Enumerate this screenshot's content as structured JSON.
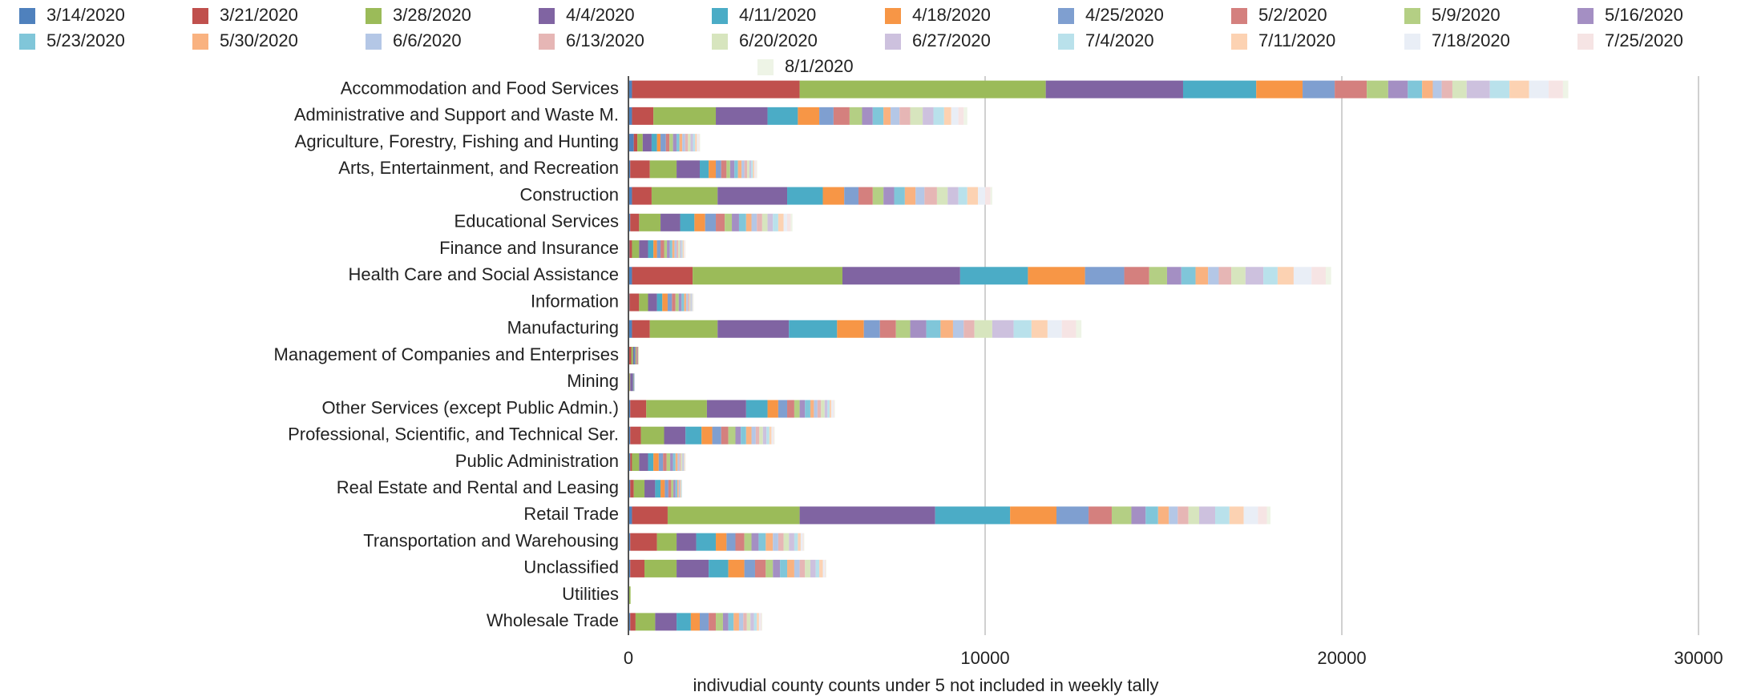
{
  "chart_data": {
    "type": "stacked_bar_horizontal",
    "x_label": "indivudial county counts under 5 not included in weekly tally",
    "categories": [
      "Accommodation and Food Services",
      "Administrative and Support and Waste M.",
      "Agriculture, Forestry, Fishing and Hunting",
      "Arts, Entertainment, and Recreation",
      "Construction",
      "Educational Services",
      "Finance and Insurance",
      "Health Care and Social Assistance",
      "Information",
      "Manufacturing",
      "Management of Companies and Enterprises",
      "Mining",
      "Other Services (except Public Admin.)",
      "Professional, Scientific, and Technical Ser.",
      "Public Administration",
      "Real Estate and Rental and Leasing",
      "Retail Trade",
      "Transportation and Warehousing",
      "Unclassified",
      "Utilities",
      "Wholesale Trade"
    ],
    "xlim": [
      0,
      30000
    ],
    "xticks": [
      0,
      10000,
      20000,
      30000
    ],
    "grid": true,
    "series": [
      {
        "name": "3/14/2020",
        "color": "#4f81bd",
        "values": [
          100,
          100,
          150,
          50,
          100,
          50,
          30,
          100,
          30,
          100,
          20,
          20,
          50,
          50,
          50,
          50,
          100,
          50,
          50,
          10,
          50
        ]
      },
      {
        "name": "3/21/2020",
        "color": "#c0504d",
        "values": [
          4700,
          600,
          100,
          550,
          550,
          250,
          70,
          1700,
          270,
          500,
          60,
          10,
          450,
          300,
          50,
          100,
          1000,
          750,
          400,
          10,
          150
        ]
      },
      {
        "name": "3/28/2020",
        "color": "#9bbb59",
        "values": [
          6900,
          1750,
          150,
          750,
          1850,
          600,
          200,
          4200,
          250,
          1900,
          50,
          20,
          1700,
          650,
          200,
          300,
          3700,
          550,
          900,
          40,
          550
        ]
      },
      {
        "name": "4/4/2020",
        "color": "#8064a2",
        "values": [
          3850,
          1450,
          250,
          650,
          1950,
          550,
          250,
          3300,
          250,
          2000,
          40,
          80,
          1100,
          600,
          250,
          300,
          3800,
          550,
          900,
          0,
          600
        ]
      },
      {
        "name": "4/11/2020",
        "color": "#4bacc6",
        "values": [
          2050,
          850,
          150,
          250,
          1000,
          400,
          150,
          1900,
          150,
          1350,
          30,
          20,
          600,
          450,
          150,
          150,
          2100,
          550,
          550,
          0,
          400
        ]
      },
      {
        "name": "4/18/2020",
        "color": "#f79646",
        "values": [
          1300,
          600,
          100,
          200,
          600,
          300,
          100,
          1600,
          150,
          750,
          30,
          10,
          300,
          300,
          150,
          120,
          1300,
          300,
          450,
          0,
          250
        ]
      },
      {
        "name": "4/25/2020",
        "color": "#7f9fd0",
        "values": [
          900,
          400,
          150,
          150,
          400,
          300,
          100,
          1100,
          120,
          450,
          20,
          10,
          250,
          250,
          120,
          100,
          900,
          250,
          300,
          0,
          250
        ]
      },
      {
        "name": "5/2/2020",
        "color": "#d4807e",
        "values": [
          900,
          450,
          100,
          150,
          400,
          250,
          100,
          700,
          100,
          450,
          20,
          0,
          200,
          200,
          100,
          80,
          650,
          250,
          300,
          0,
          200
        ]
      },
      {
        "name": "5/9/2020",
        "color": "#b4cf84",
        "values": [
          600,
          350,
          100,
          100,
          300,
          200,
          80,
          500,
          90,
          400,
          10,
          0,
          150,
          200,
          100,
          60,
          550,
          200,
          200,
          0,
          200
        ]
      },
      {
        "name": "5/16/2020",
        "color": "#a48fc3",
        "values": [
          550,
          300,
          100,
          120,
          300,
          200,
          80,
          400,
          80,
          450,
          0,
          0,
          150,
          150,
          80,
          60,
          400,
          200,
          200,
          0,
          150
        ]
      },
      {
        "name": "5/23/2020",
        "color": "#80c6d9",
        "values": [
          400,
          300,
          80,
          100,
          300,
          200,
          70,
          400,
          70,
          400,
          0,
          0,
          150,
          150,
          70,
          50,
          350,
          200,
          200,
          0,
          150
        ]
      },
      {
        "name": "5/30/2020",
        "color": "#f9b280",
        "values": [
          300,
          200,
          80,
          100,
          300,
          150,
          60,
          350,
          60,
          350,
          0,
          0,
          100,
          150,
          60,
          40,
          300,
          200,
          200,
          0,
          150
        ]
      },
      {
        "name": "6/6/2020",
        "color": "#b4c7e6",
        "values": [
          250,
          250,
          80,
          80,
          250,
          150,
          60,
          300,
          50,
          300,
          0,
          0,
          100,
          120,
          50,
          30,
          250,
          150,
          150,
          0,
          120
        ]
      },
      {
        "name": "6/13/2020",
        "color": "#e6b6b5",
        "values": [
          300,
          300,
          80,
          80,
          350,
          150,
          50,
          350,
          40,
          300,
          0,
          0,
          100,
          100,
          40,
          20,
          300,
          150,
          150,
          0,
          100
        ]
      },
      {
        "name": "6/20/2020",
        "color": "#d7e5be",
        "values": [
          400,
          350,
          70,
          60,
          300,
          150,
          50,
          400,
          30,
          500,
          0,
          0,
          100,
          100,
          40,
          20,
          300,
          150,
          150,
          0,
          100
        ]
      },
      {
        "name": "6/27/2020",
        "color": "#cdc1de",
        "values": [
          650,
          300,
          70,
          50,
          300,
          150,
          40,
          500,
          30,
          600,
          0,
          0,
          80,
          100,
          30,
          10,
          450,
          150,
          150,
          0,
          100
        ]
      },
      {
        "name": "7/4/2020",
        "color": "#b9e1eb",
        "values": [
          550,
          300,
          60,
          50,
          250,
          150,
          30,
          400,
          20,
          500,
          0,
          0,
          60,
          80,
          20,
          10,
          400,
          100,
          100,
          0,
          80
        ]
      },
      {
        "name": "7/11/2020",
        "color": "#fcd2b2",
        "values": [
          550,
          200,
          50,
          40,
          300,
          150,
          30,
          450,
          10,
          450,
          0,
          0,
          50,
          60,
          20,
          0,
          400,
          80,
          100,
          0,
          60
        ]
      },
      {
        "name": "7/18/2020",
        "color": "#e9eef6",
        "values": [
          550,
          200,
          40,
          30,
          200,
          100,
          20,
          500,
          10,
          400,
          0,
          0,
          50,
          40,
          10,
          0,
          400,
          50,
          50,
          0,
          40
        ]
      },
      {
        "name": "7/25/2020",
        "color": "#f6e4e4",
        "values": [
          400,
          150,
          30,
          30,
          150,
          100,
          20,
          400,
          10,
          400,
          0,
          0,
          30,
          30,
          10,
          0,
          250,
          30,
          30,
          0,
          30
        ]
      },
      {
        "name": "8/1/2020",
        "color": "#eef4e6",
        "values": [
          150,
          100,
          20,
          20,
          50,
          50,
          10,
          150,
          10,
          150,
          0,
          0,
          20,
          20,
          10,
          0,
          100,
          20,
          20,
          0,
          20
        ]
      }
    ]
  }
}
